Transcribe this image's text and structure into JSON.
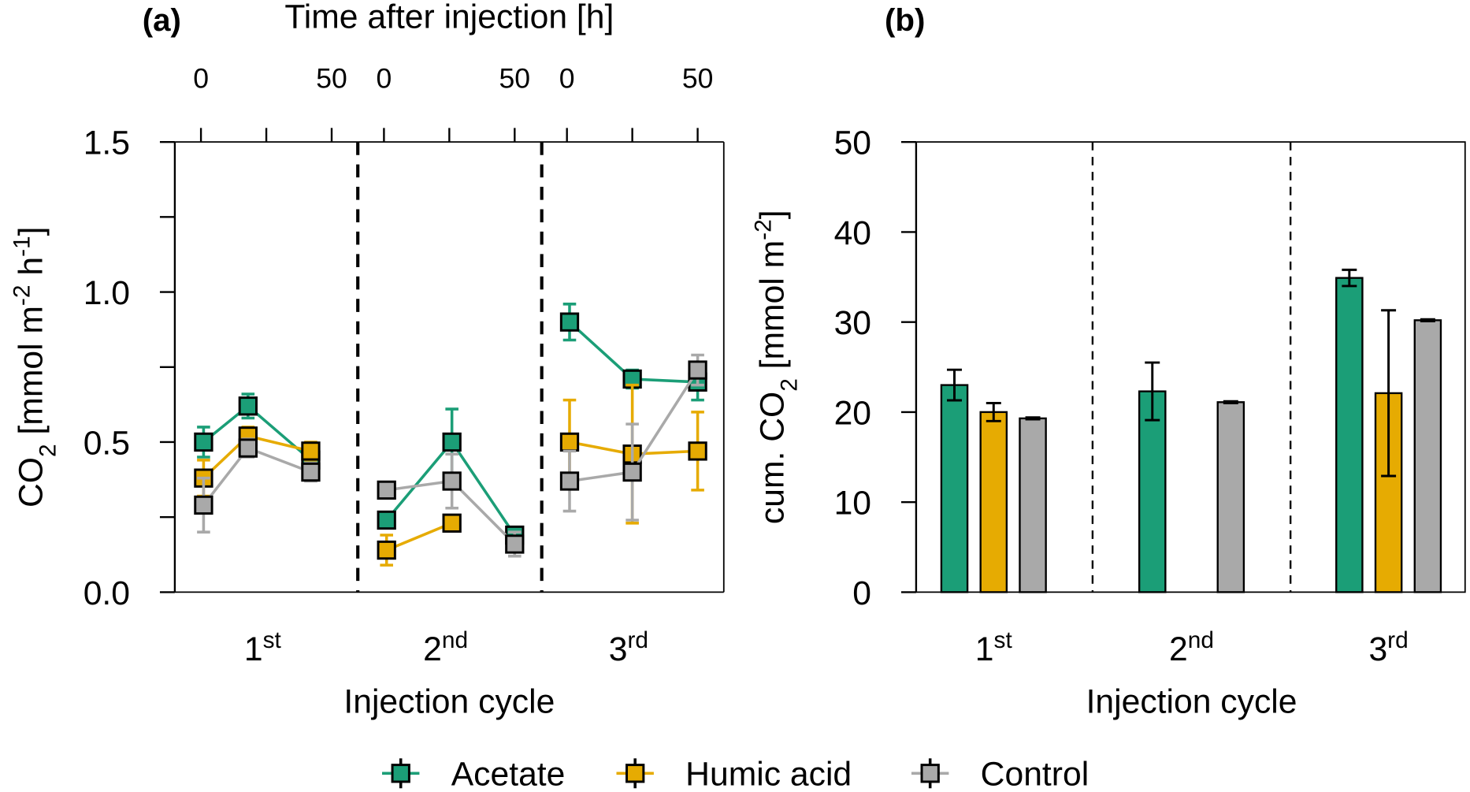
{
  "colors": {
    "Acetate": "#1b9e77",
    "Humic acid": "#e6ab02",
    "Control": "#a9a9a9"
  },
  "chart_data": [
    {
      "type": "line",
      "panel_label": "(a)",
      "top_xlabel": "Time after injection [h]",
      "top_ticks": [
        "0",
        "50"
      ],
      "ylabel": "CO2 [mmol m-2 h-1]",
      "ylabel_parts": {
        "main": "CO",
        "sub": "2",
        "rest": " [mmol m",
        "sup1": "−2",
        "mid": " h",
        "sup2": "−1",
        "end": "]"
      },
      "ylim": [
        0,
        1.5
      ],
      "yticks": [
        "0.0",
        "0.5",
        "1.0",
        "1.5"
      ],
      "xlabel": "Injection cycle",
      "cycles": [
        {
          "base": "1",
          "sup": "st"
        },
        {
          "base": "2",
          "sup": "nd"
        },
        {
          "base": "3",
          "sup": "rd"
        }
      ],
      "series": [
        {
          "name": "Acetate",
          "cycles": [
            {
              "t": [
                1,
                18,
                42
              ],
              "y": [
                0.5,
                0.62,
                0.44
              ],
              "err": [
                0.05,
                0.04,
                0.02
              ]
            },
            {
              "t": [
                1,
                26,
                50
              ],
              "y": [
                0.24,
                0.5,
                0.19
              ],
              "err": [
                0.02,
                0.11,
                0.02
              ]
            },
            {
              "t": [
                1,
                25,
                50
              ],
              "y": [
                0.9,
                0.71,
                0.7
              ],
              "err": [
                0.06,
                0.03,
                0.06
              ]
            }
          ]
        },
        {
          "name": "Humic acid",
          "cycles": [
            {
              "t": [
                1,
                18,
                42
              ],
              "y": [
                0.38,
                0.52,
                0.47
              ],
              "err": [
                0.06,
                0.03,
                0.03
              ]
            },
            {
              "t": [
                1,
                26
              ],
              "y": [
                0.14,
                0.23
              ],
              "err": [
                0.05,
                0.01
              ]
            },
            {
              "t": [
                1,
                25,
                50
              ],
              "y": [
                0.5,
                0.46,
                0.47
              ],
              "err": [
                0.14,
                0.23,
                0.13
              ]
            }
          ]
        },
        {
          "name": "Control",
          "cycles": [
            {
              "t": [
                1,
                18,
                42
              ],
              "y": [
                0.29,
                0.48,
                0.4
              ],
              "err": [
                0.09,
                0.03,
                0.03
              ]
            },
            {
              "t": [
                1,
                26,
                50
              ],
              "y": [
                0.34,
                0.37,
                0.16
              ],
              "err": [
                0.02,
                0.09,
                0.04
              ]
            },
            {
              "t": [
                1,
                25,
                50
              ],
              "y": [
                0.37,
                0.4,
                0.74
              ],
              "err": [
                0.1,
                0.16,
                0.05
              ]
            }
          ]
        }
      ]
    },
    {
      "type": "bar",
      "panel_label": "(b)",
      "ylabel": "cum. CO2 [mmol m-2]",
      "ylabel_parts": {
        "main": "cum. CO",
        "sub": "2",
        "rest": " [mmol m",
        "sup1": "−2",
        "end": "]"
      },
      "ylim": [
        0,
        50
      ],
      "yticks": [
        "0",
        "10",
        "20",
        "30",
        "40",
        "50"
      ],
      "xlabel": "Injection cycle",
      "categories": [
        "1st",
        "2nd",
        "3rd"
      ],
      "series": [
        {
          "name": "Acetate",
          "values": [
            23.0,
            22.3,
            34.9
          ],
          "err": [
            1.7,
            3.2,
            0.9
          ]
        },
        {
          "name": "Humic acid",
          "values": [
            20.0,
            null,
            22.1
          ],
          "err": [
            1.0,
            null,
            9.2
          ]
        },
        {
          "name": "Control",
          "values": [
            19.3,
            21.1,
            30.2
          ],
          "err": [
            0.1,
            0.1,
            0.1
          ]
        }
      ]
    }
  ],
  "legend": [
    "Acetate",
    "Humic acid",
    "Control"
  ]
}
